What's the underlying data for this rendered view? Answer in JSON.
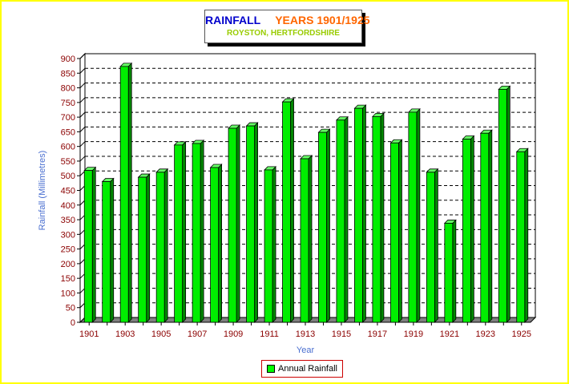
{
  "chart_data": {
    "type": "bar",
    "title_part1": "RAINFALL",
    "title_part2": "YEARS 1901/1925",
    "subtitle": "ROYSTON, HERTFORDSHIRE",
    "xlabel": "Year",
    "ylabel": "Rainfall (Millimetres)",
    "ylim": [
      0,
      900
    ],
    "ytick_step": 50,
    "categories": [
      "1901",
      "1902",
      "1903",
      "1904",
      "1905",
      "1906",
      "1907",
      "1908",
      "1909",
      "1910",
      "1911",
      "1912",
      "1913",
      "1914",
      "1915",
      "1916",
      "1917",
      "1918",
      "1919",
      "1920",
      "1921",
      "1922",
      "1923",
      "1924",
      "1925"
    ],
    "x_tick_labels": [
      "1901",
      "1903",
      "1905",
      "1907",
      "1909",
      "1911",
      "1913",
      "1915",
      "1917",
      "1919",
      "1921",
      "1923",
      "1925"
    ],
    "series": [
      {
        "name": "Annual Rainfall",
        "values": [
          518,
          480,
          873,
          495,
          512,
          605,
          610,
          528,
          662,
          670,
          520,
          752,
          558,
          648,
          690,
          730,
          702,
          612,
          717,
          512,
          338,
          625,
          645,
          795,
          582
        ],
        "color": "#00ee00"
      }
    ],
    "grid": true,
    "legend_position": "bottom-center"
  },
  "colors": {
    "frame": "#ffff00",
    "axis_text": "#8b0000",
    "axis_title": "#4a6fd0",
    "bar": "#00ee00",
    "bar_side": "#008800"
  }
}
